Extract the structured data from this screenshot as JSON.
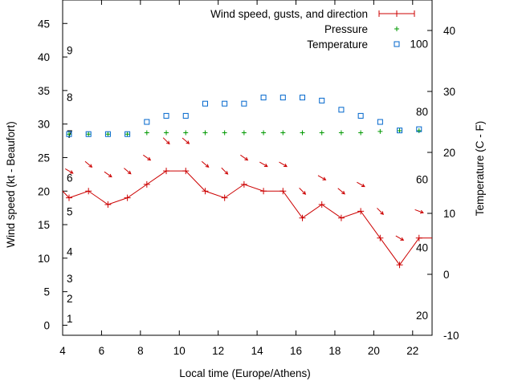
{
  "chart_data": {
    "type": "line",
    "xlabel": "Local time (Europe/Athens)",
    "ylabel_left": "Wind speed (kt - Beaufort)",
    "ylabel_right": "Temperature (C - F)",
    "xlim": [
      4,
      23
    ],
    "ylim_left": [
      -1.5,
      48.5
    ],
    "ylim_right": [
      -10,
      45
    ],
    "x_ticks": [
      4,
      6,
      8,
      10,
      12,
      14,
      16,
      18,
      20,
      22
    ],
    "y_ticks_left": [
      0,
      5,
      10,
      15,
      20,
      25,
      30,
      35,
      40,
      45
    ],
    "y_ticks_right": [
      -10,
      0,
      10,
      20,
      30,
      40
    ],
    "beaufort_labels": [
      {
        "label": "1",
        "y": 1
      },
      {
        "label": "2",
        "y": 4
      },
      {
        "label": "3",
        "y": 7
      },
      {
        "label": "4",
        "y": 11
      },
      {
        "label": "5",
        "y": 17
      },
      {
        "label": "6",
        "y": 22
      },
      {
        "label": "7",
        "y": 28.5
      },
      {
        "label": "8",
        "y": 34
      },
      {
        "label": "9",
        "y": 41
      }
    ],
    "fahrenheit_labels": [
      {
        "label": "20",
        "t": -6.7
      },
      {
        "label": "40",
        "t": 4.4
      },
      {
        "label": "60",
        "t": 15.6
      },
      {
        "label": "80",
        "t": 26.7
      },
      {
        "label": "100",
        "t": 37.8
      }
    ],
    "legend": {
      "position": "top-right",
      "entries": [
        "Wind speed, gusts, and direction",
        "Pressure",
        "Temperature"
      ]
    },
    "colors": {
      "wind": "#cc0000",
      "pressure": "#009900",
      "temperature": "#0066cc"
    },
    "series": [
      {
        "name": "Wind speed, gusts, and direction",
        "x": [
          4,
          4.33,
          5.33,
          6.33,
          7.33,
          8.33,
          9.33,
          10.33,
          11.33,
          12.33,
          13.33,
          14.33,
          15.33,
          16.33,
          17.33,
          18.33,
          19.33,
          20.33,
          21.33,
          22.33,
          23
        ],
        "values": [
          20,
          19,
          20,
          18,
          19,
          21,
          23,
          23,
          20,
          19,
          21,
          20,
          20,
          16,
          18,
          16,
          17,
          13,
          9,
          13,
          13
        ]
      },
      {
        "name": "Pressure",
        "x": [
          4.33,
          5.33,
          6.33,
          7.33,
          8.33,
          9.33,
          10.33,
          11.33,
          12.33,
          13.33,
          14.33,
          15.33,
          16.33,
          17.33,
          18.33,
          19.33,
          20.33,
          21.33,
          22.33
        ],
        "values": [
          28.5,
          28.5,
          28.5,
          28.5,
          28.7,
          28.7,
          28.7,
          28.7,
          28.7,
          28.7,
          28.7,
          28.7,
          28.7,
          28.7,
          28.7,
          28.7,
          28.9,
          29,
          29
        ]
      },
      {
        "name": "Temperature",
        "x": [
          4.33,
          5.33,
          6.33,
          7.33,
          8.33,
          9.33,
          10.33,
          11.33,
          12.33,
          13.33,
          14.33,
          15.33,
          16.33,
          17.33,
          18.33,
          19.33,
          20.33,
          21.33,
          22.33
        ],
        "values": [
          23,
          23,
          23,
          23,
          25,
          26,
          26,
          28,
          28,
          28,
          29,
          29,
          29,
          28.5,
          27,
          26,
          25,
          23.6,
          23.8
        ]
      }
    ],
    "direction_arrows": {
      "x": [
        4.33,
        5.33,
        6.33,
        7.33,
        8.33,
        9.33,
        10.33,
        11.33,
        12.33,
        13.33,
        14.33,
        15.33,
        16.33,
        17.33,
        18.33,
        19.33,
        20.33,
        21.33,
        22.33
      ],
      "angle_deg": [
        30,
        40,
        35,
        40,
        35,
        45,
        40,
        40,
        45,
        35,
        30,
        30,
        45,
        30,
        40,
        30,
        45,
        30,
        20
      ],
      "y": [
        23,
        24,
        22.5,
        23,
        25,
        27.5,
        27.5,
        24,
        23,
        25,
        24,
        24,
        20,
        22,
        20,
        21,
        17,
        13,
        17
      ]
    }
  }
}
